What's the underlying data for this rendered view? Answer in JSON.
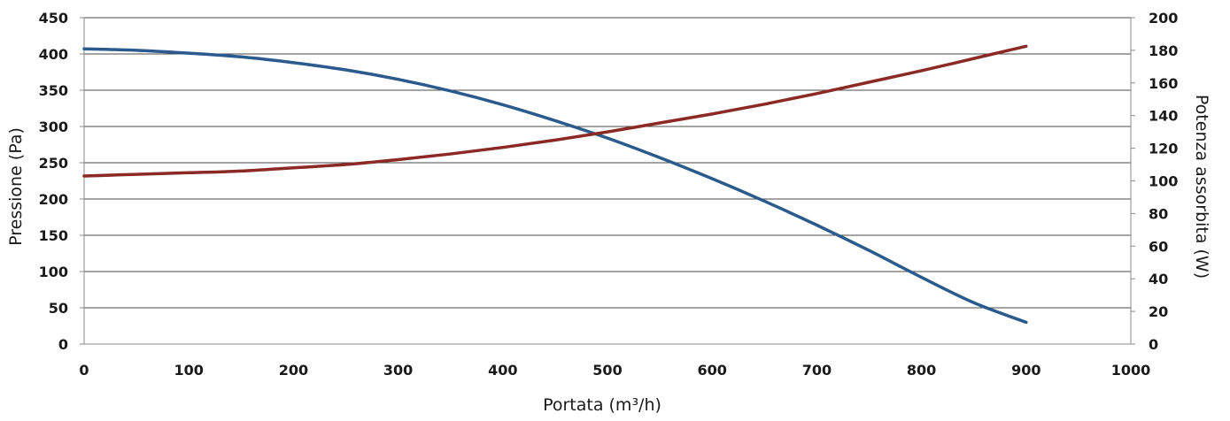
{
  "chart_data": {
    "type": "line",
    "title": "",
    "xlabel": "Portata (m³/h)",
    "ylabel_left": "Pressione (Pa)",
    "ylabel_right": "Potenza assorbita (W)",
    "xlim": [
      0,
      1000
    ],
    "ylim_left": [
      0,
      450
    ],
    "ylim_right": [
      0,
      200
    ],
    "x_ticks": [
      "0",
      "100",
      "200",
      "300",
      "400",
      "500",
      "600",
      "700",
      "800",
      "900",
      "1000"
    ],
    "y_left_ticks": [
      "0",
      "50",
      "100",
      "150",
      "200",
      "250",
      "300",
      "350",
      "400",
      "450"
    ],
    "y_right_ticks": [
      "0",
      "20",
      "40",
      "60",
      "80",
      "100",
      "120",
      "140",
      "160",
      "180",
      "200"
    ],
    "grid": "horizontal",
    "legend": "none",
    "series": [
      {
        "axis": "left",
        "color": "#2b5a8c",
        "x": [
          0,
          50,
          100,
          150,
          200,
          250,
          300,
          350,
          400,
          450,
          500,
          550,
          600,
          650,
          700,
          750,
          800,
          850,
          900
        ],
        "values": [
          407,
          405,
          401,
          396,
          388,
          378,
          365,
          349,
          330,
          308,
          284,
          257,
          228,
          197,
          164,
          129,
          92,
          57,
          30
        ]
      },
      {
        "axis": "right",
        "color": "#8b2a25",
        "x": [
          0,
          50,
          100,
          150,
          200,
          250,
          300,
          350,
          400,
          450,
          500,
          550,
          600,
          650,
          700,
          750,
          800,
          850,
          900
        ],
        "values": [
          103,
          104,
          105,
          106,
          108,
          110,
          113,
          116.5,
          120.5,
          125,
          130,
          135.5,
          141,
          147,
          153.5,
          160.5,
          167.5,
          175,
          182.5
        ]
      }
    ]
  }
}
